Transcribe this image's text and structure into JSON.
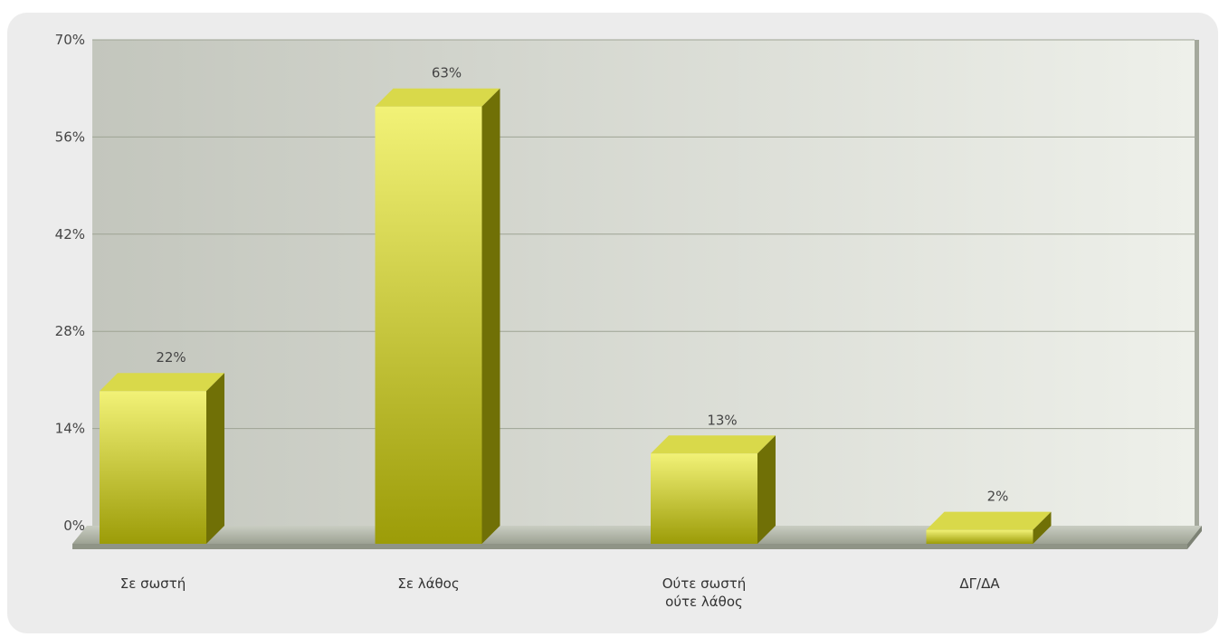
{
  "chart_data": {
    "type": "bar",
    "categories": [
      [
        "Σε σωστή"
      ],
      [
        "Σε λάθος"
      ],
      [
        "Ούτε σωστή",
        "ούτε λάθος"
      ],
      [
        "ΔΓ/ΔΑ"
      ]
    ],
    "values": [
      22,
      63,
      13,
      2
    ],
    "value_labels": [
      "22%",
      "63%",
      "13%",
      "2%"
    ],
    "y_ticks": [
      0,
      14,
      28,
      42,
      56,
      70
    ],
    "y_tick_labels": [
      "0%",
      "14%",
      "28%",
      "42%",
      "56%",
      "70%"
    ],
    "ylim": [
      0,
      70
    ],
    "grid": true,
    "legend": "none",
    "colors": {
      "bar_front_light": "#f2f277",
      "bar_front_dark": "#9c9c08",
      "bar_top": "#d9d94a",
      "bar_side": "#707006",
      "plot_bg_left": "#c3c6bd",
      "plot_bg_right": "#eef0ea",
      "grid": "#9ea394",
      "floor": "#b8bdb0"
    }
  }
}
